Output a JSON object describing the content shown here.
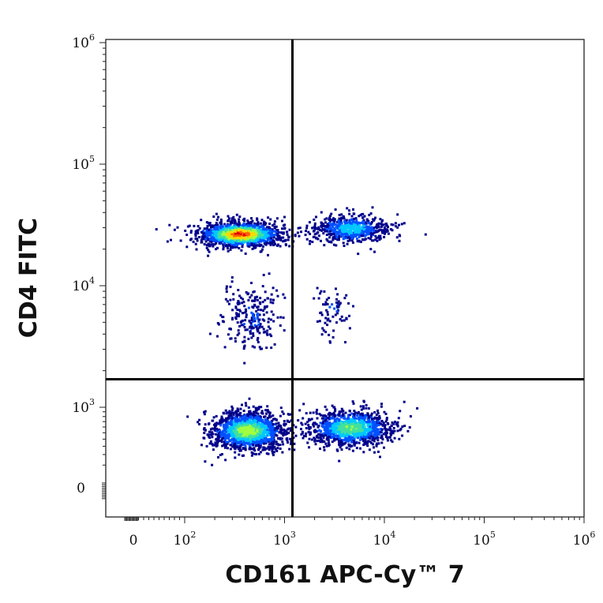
{
  "chart_data": {
    "type": "scatter",
    "title": "",
    "xlabel": "CD161 APC-Cy™ 7",
    "ylabel": "CD4 FITC",
    "x_scale": "biexponential (log above 10^2)",
    "y_scale": "biexponential (log above 10^3)",
    "x_ticks": [
      {
        "value": 0,
        "base": "0",
        "exp": ""
      },
      {
        "value": 100,
        "base": "10",
        "exp": "2"
      },
      {
        "value": 1000,
        "base": "10",
        "exp": "3"
      },
      {
        "value": 10000,
        "base": "10",
        "exp": "4"
      },
      {
        "value": 100000,
        "base": "10",
        "exp": "5"
      },
      {
        "value": 1000000,
        "base": "10",
        "exp": "6"
      }
    ],
    "y_ticks": [
      {
        "value": 0,
        "base": "0",
        "exp": ""
      },
      {
        "value": 1000,
        "base": "10",
        "exp": "3"
      },
      {
        "value": 10000,
        "base": "10",
        "exp": "4"
      },
      {
        "value": 100000,
        "base": "10",
        "exp": "5"
      },
      {
        "value": 1000000,
        "base": "10",
        "exp": "6"
      }
    ],
    "quadrant_gates": {
      "x": 1200,
      "y": 1700
    },
    "density_colormap": [
      "#00008b",
      "#0050ff",
      "#00c8ff",
      "#40e0a0",
      "#a0ff40",
      "#ffd700",
      "#ff6000",
      "#e00000"
    ],
    "populations": [
      {
        "x_center": 350,
        "y_center": 27000,
        "count": 1400,
        "peak_density": 1.0
      },
      {
        "x_center": 4500,
        "y_center": 30000,
        "count": 600,
        "peak_density": 0.35
      },
      {
        "x_center": 450,
        "y_center": 5500,
        "count": 230,
        "peak_density": 0.1
      },
      {
        "x_center": 3000,
        "y_center": 6500,
        "count": 70,
        "peak_density": 0.1
      },
      {
        "x_center": 420,
        "y_center": 550,
        "count": 1500,
        "peak_density": 0.65
      },
      {
        "x_center": 4500,
        "y_center": 600,
        "count": 1100,
        "peak_density": 0.55
      }
    ]
  }
}
